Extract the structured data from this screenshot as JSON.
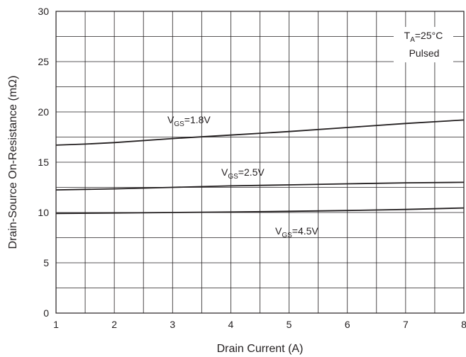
{
  "chart_data": {
    "type": "line",
    "xlabel": "Drain Current (A)",
    "ylabel": "Drain-Source On-Resistance (mΩ)",
    "xlim": [
      1,
      8
    ],
    "ylim": [
      0,
      30
    ],
    "x_ticks": [
      1,
      2,
      3,
      4,
      5,
      6,
      7,
      8
    ],
    "y_ticks": [
      0,
      5,
      10,
      15,
      20,
      25,
      30
    ],
    "grid": true,
    "x_minor_grid_step": 0.5,
    "y_minor_grid_step": 2.5,
    "series": [
      {
        "label_main": "V",
        "label_sub": "GS",
        "label_value": "=1.8V",
        "x": [
          1,
          1.5,
          2,
          3,
          4,
          5,
          6,
          7,
          8
        ],
        "y": [
          16.7,
          16.8,
          16.95,
          17.35,
          17.7,
          18.05,
          18.45,
          18.85,
          19.2
        ]
      },
      {
        "label_main": "V",
        "label_sub": "GS",
        "label_value": "=2.5V",
        "x": [
          1,
          2,
          3,
          4,
          5,
          6,
          7,
          8
        ],
        "y": [
          12.25,
          12.35,
          12.5,
          12.65,
          12.75,
          12.85,
          12.95,
          13.0
        ]
      },
      {
        "label_main": "V",
        "label_sub": "GS",
        "label_value": "=4.5V",
        "x": [
          1,
          2,
          3,
          4,
          5,
          6,
          7,
          8
        ],
        "y": [
          9.9,
          9.95,
          10.0,
          10.05,
          10.12,
          10.2,
          10.3,
          10.45
        ]
      }
    ],
    "annotation": {
      "t_main": "T",
      "t_sub": "A",
      "t_value": "=25°C",
      "line2": "Pulsed"
    },
    "colors": {
      "line": "#231f20",
      "grid": "#231f20",
      "background": "#ffffff"
    }
  }
}
